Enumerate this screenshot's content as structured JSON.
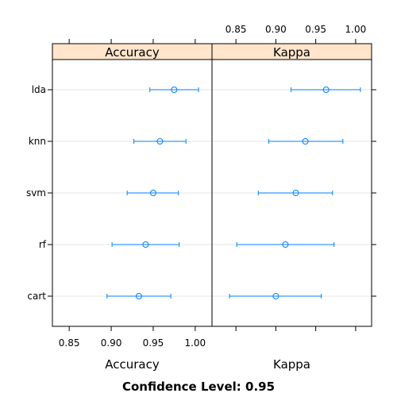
{
  "chart_data": {
    "type": "dotplot",
    "title": "Confidence Level: 0.95",
    "categories": [
      "lda",
      "knn",
      "svm",
      "rf",
      "cart"
    ],
    "panels": [
      {
        "name": "Accuracy",
        "xlabel": "Accuracy",
        "xlim": [
          0.83,
          1.02
        ],
        "ticks": [
          0.85,
          0.9,
          0.95,
          1.0
        ],
        "tick_labels": [
          "0.85",
          "0.90",
          "0.95",
          "1.00"
        ],
        "tick_label_side": "bottom",
        "points": [
          {
            "model": "lda",
            "estimate": 0.975,
            "lower": 0.946,
            "upper": 1.004
          },
          {
            "model": "knn",
            "estimate": 0.958,
            "lower": 0.927,
            "upper": 0.989
          },
          {
            "model": "svm",
            "estimate": 0.95,
            "lower": 0.919,
            "upper": 0.98
          },
          {
            "model": "rf",
            "estimate": 0.941,
            "lower": 0.901,
            "upper": 0.981
          },
          {
            "model": "cart",
            "estimate": 0.933,
            "lower": 0.895,
            "upper": 0.971
          }
        ]
      },
      {
        "name": "Kappa",
        "xlabel": "Kappa",
        "xlim": [
          0.82,
          1.02
        ],
        "ticks": [
          0.85,
          0.9,
          0.95,
          1.0
        ],
        "tick_labels": [
          "0.85",
          "0.90",
          "0.95",
          "1.00"
        ],
        "tick_label_side": "top",
        "points": [
          {
            "model": "lda",
            "estimate": 0.963,
            "lower": 0.919,
            "upper": 1.006
          },
          {
            "model": "knn",
            "estimate": 0.937,
            "lower": 0.891,
            "upper": 0.984
          },
          {
            "model": "svm",
            "estimate": 0.925,
            "lower": 0.878,
            "upper": 0.971
          },
          {
            "model": "rf",
            "estimate": 0.912,
            "lower": 0.851,
            "upper": 0.973
          },
          {
            "model": "cart",
            "estimate": 0.9,
            "lower": 0.842,
            "upper": 0.957
          }
        ]
      }
    ],
    "grid": true,
    "colors": {
      "point": "#0080ff",
      "strip": "#ffe5cc",
      "grid": "#e6e6e6",
      "frame": "#000000"
    }
  }
}
